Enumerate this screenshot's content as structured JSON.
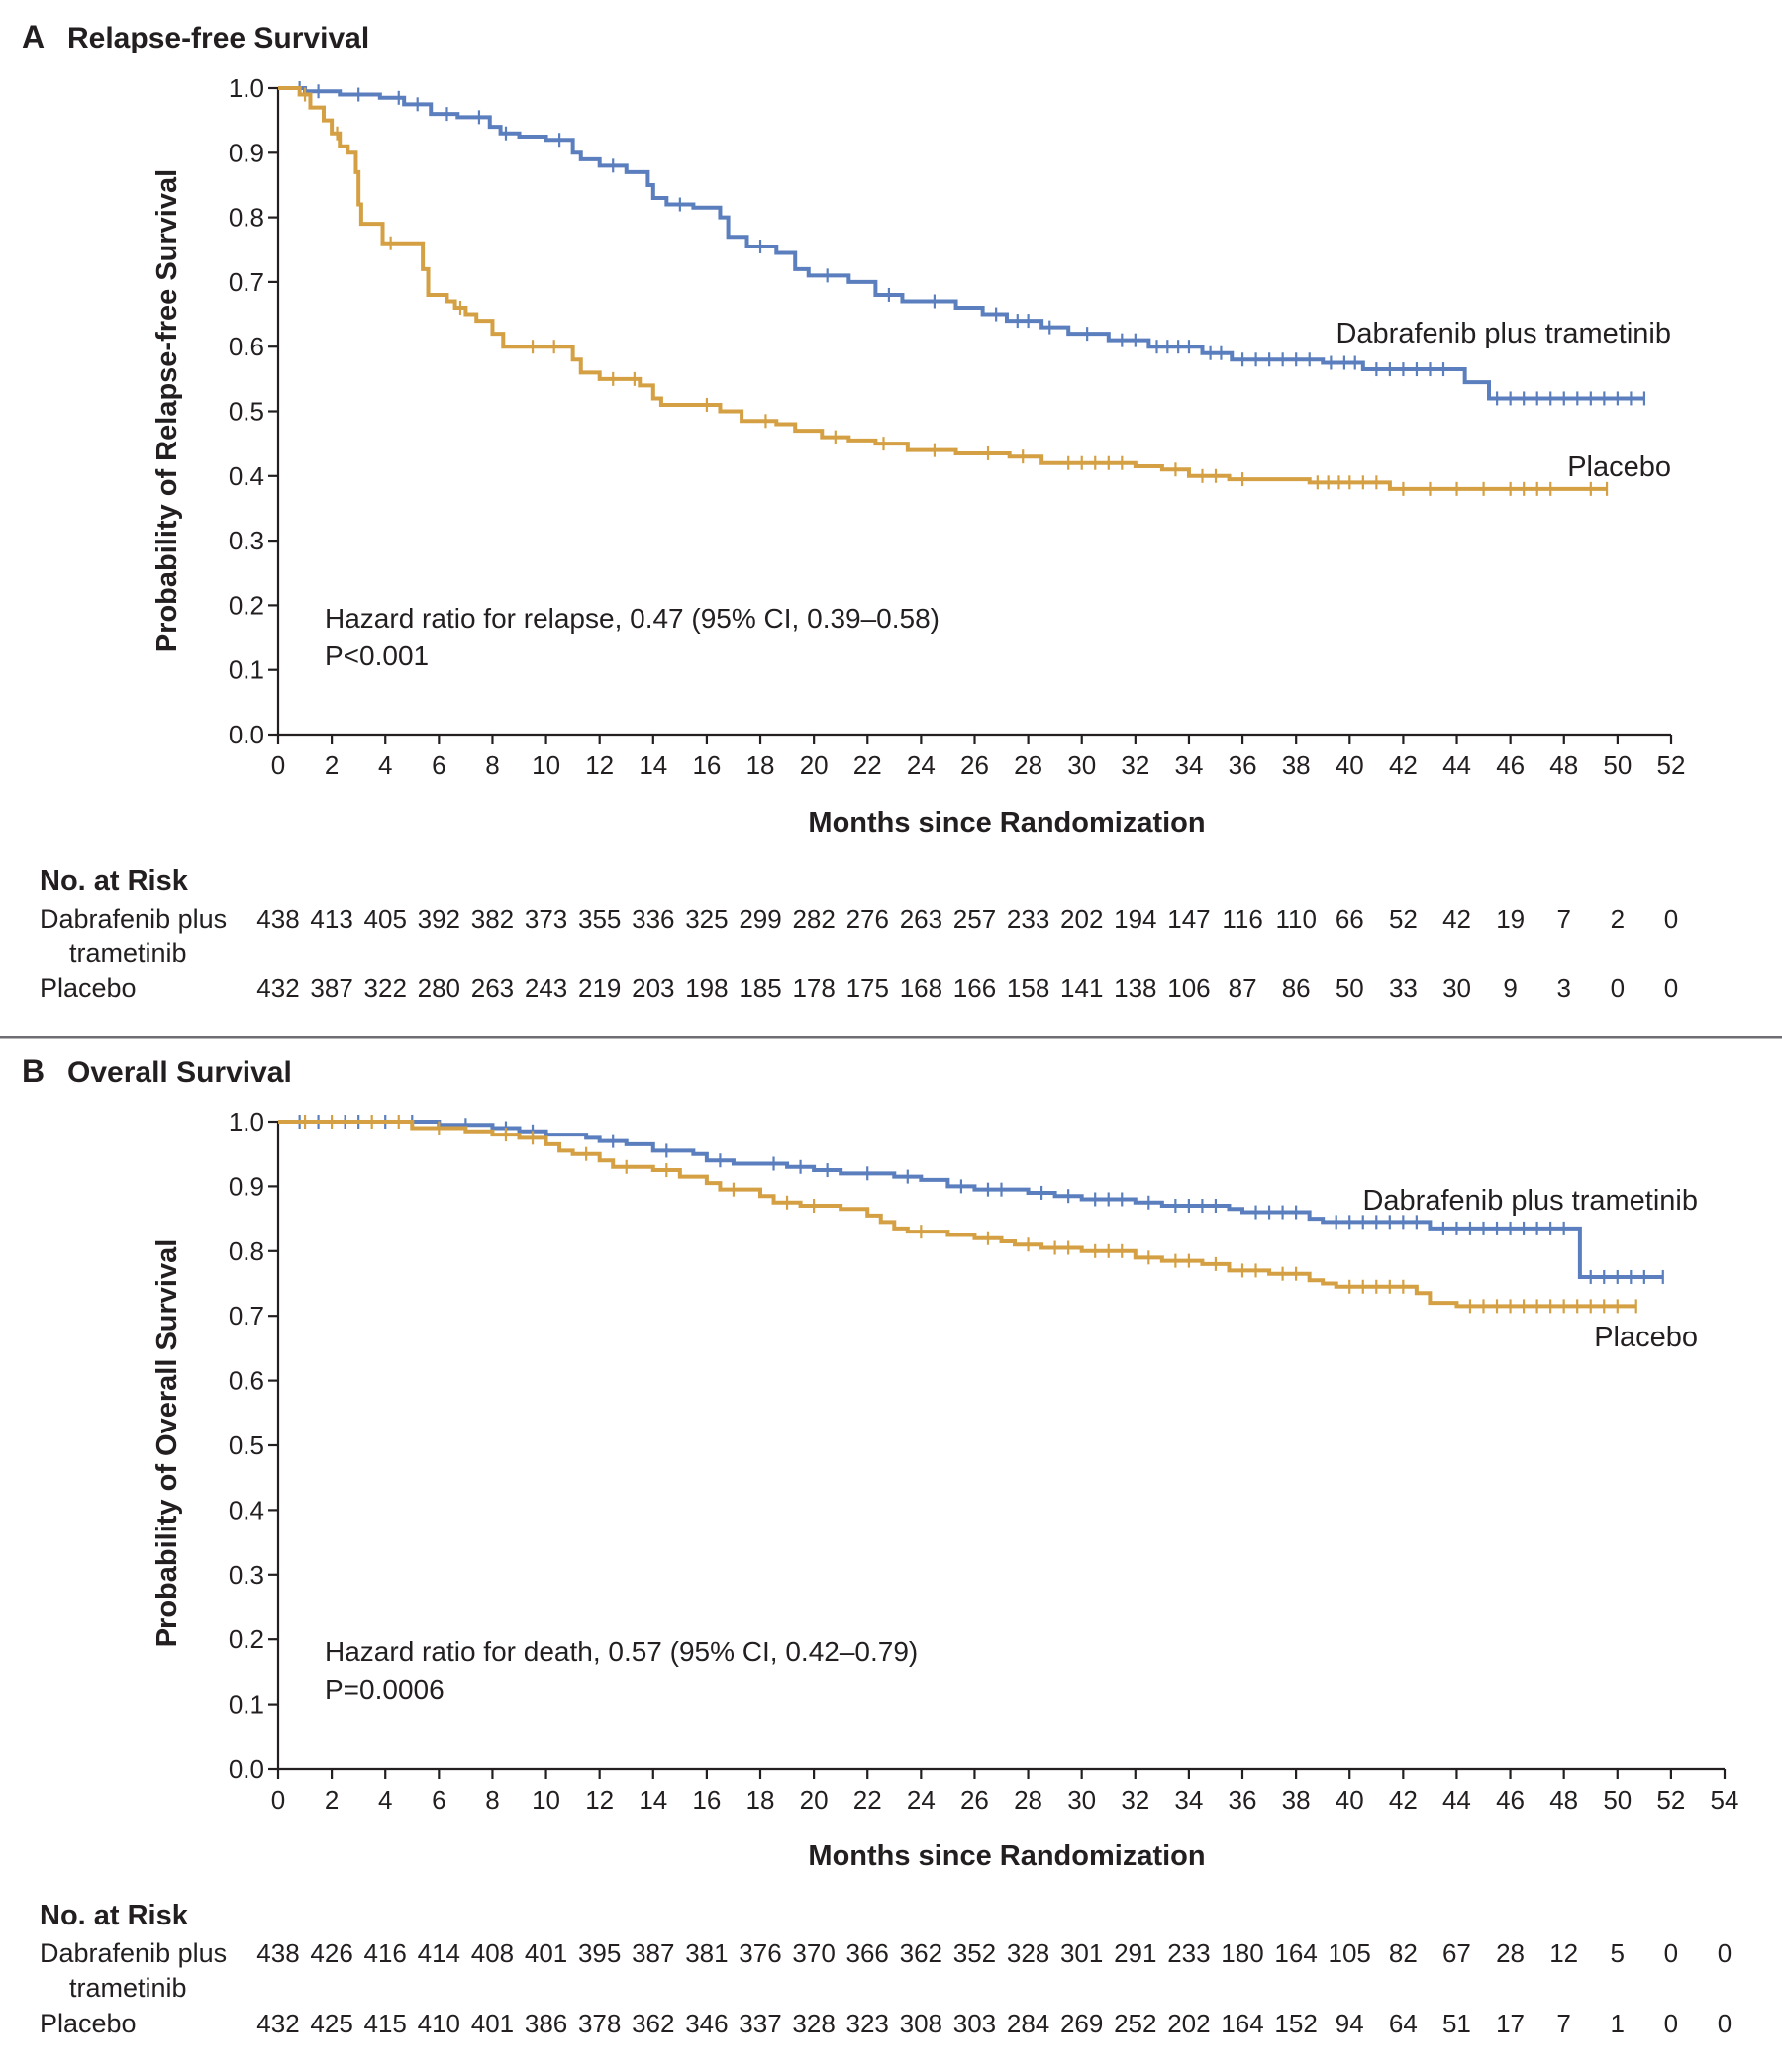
{
  "chart_data": [
    {
      "type": "line",
      "panel": "A",
      "title": "Relapse-free Survival",
      "xlabel": "Months since Randomization",
      "ylabel": "Probability of Relapse-free Survival",
      "xlim": [
        0,
        52
      ],
      "ylim": [
        0.0,
        1.0
      ],
      "x_ticks": [
        0,
        2,
        4,
        6,
        8,
        10,
        12,
        14,
        16,
        18,
        20,
        22,
        24,
        26,
        28,
        30,
        32,
        34,
        36,
        38,
        40,
        42,
        44,
        46,
        48,
        50,
        52
      ],
      "y_ticks": [
        "0.0",
        "0.1",
        "0.2",
        "0.3",
        "0.4",
        "0.5",
        "0.6",
        "0.7",
        "0.8",
        "0.9",
        "1.0"
      ],
      "annotations": [
        "Hazard ratio for relapse, 0.47 (95% CI, 0.39–0.58)",
        "P<0.001"
      ],
      "series": [
        {
          "name": "Dabrafenib plus trametinib",
          "color": "#5b7fbe",
          "steps": [
            [
              0,
              1.0
            ],
            [
              1.0,
              0.995
            ],
            [
              2.3,
              0.99
            ],
            [
              3.8,
              0.985
            ],
            [
              4.7,
              0.975
            ],
            [
              5.7,
              0.96
            ],
            [
              6.7,
              0.955
            ],
            [
              7.9,
              0.94
            ],
            [
              8.3,
              0.93
            ],
            [
              9.0,
              0.925
            ],
            [
              10.0,
              0.92
            ],
            [
              11.0,
              0.9
            ],
            [
              11.3,
              0.89
            ],
            [
              12.0,
              0.88
            ],
            [
              13.0,
              0.87
            ],
            [
              13.8,
              0.85
            ],
            [
              14.0,
              0.83
            ],
            [
              14.5,
              0.82
            ],
            [
              15.5,
              0.815
            ],
            [
              16.5,
              0.8
            ],
            [
              16.8,
              0.77
            ],
            [
              17.5,
              0.755
            ],
            [
              18.6,
              0.745
            ],
            [
              19.3,
              0.72
            ],
            [
              19.8,
              0.71
            ],
            [
              21.3,
              0.7
            ],
            [
              22.3,
              0.68
            ],
            [
              23.3,
              0.67
            ],
            [
              25.3,
              0.66
            ],
            [
              26.3,
              0.65
            ],
            [
              27.2,
              0.64
            ],
            [
              28.5,
              0.63
            ],
            [
              29.5,
              0.62
            ],
            [
              31.0,
              0.61
            ],
            [
              32.5,
              0.6
            ],
            [
              34.5,
              0.59
            ],
            [
              35.6,
              0.58
            ],
            [
              39.0,
              0.575
            ],
            [
              40.5,
              0.565
            ],
            [
              44.3,
              0.545
            ],
            [
              45.2,
              0.52
            ],
            [
              51.0,
              0.52
            ]
          ],
          "censor_marks": [
            0.8,
            1.5,
            3.0,
            4.5,
            5.2,
            6.3,
            7.5,
            8.5,
            10.5,
            12.5,
            15.0,
            18.0,
            20.5,
            22.8,
            24.5,
            26.8,
            27.6,
            28.0,
            28.8,
            30.2,
            31.5,
            32.0,
            32.8,
            33.2,
            33.6,
            34.0,
            34.8,
            35.2,
            36.0,
            36.5,
            37.0,
            37.5,
            38.0,
            38.5,
            39.3,
            39.8,
            40.2,
            41.0,
            41.5,
            42.0,
            42.5,
            43.0,
            43.5,
            45.5,
            46.0,
            46.5,
            47.0,
            47.5,
            48.0,
            48.5,
            49.0,
            49.5,
            50.0,
            50.5,
            51.0
          ]
        },
        {
          "name": "Placebo",
          "color": "#d4a043",
          "steps": [
            [
              0,
              1.0
            ],
            [
              0.8,
              0.99
            ],
            [
              1.2,
              0.97
            ],
            [
              1.7,
              0.95
            ],
            [
              2.0,
              0.93
            ],
            [
              2.3,
              0.91
            ],
            [
              2.6,
              0.9
            ],
            [
              2.9,
              0.87
            ],
            [
              3.0,
              0.82
            ],
            [
              3.1,
              0.79
            ],
            [
              3.9,
              0.76
            ],
            [
              5.4,
              0.72
            ],
            [
              5.6,
              0.68
            ],
            [
              6.3,
              0.67
            ],
            [
              6.6,
              0.66
            ],
            [
              7.0,
              0.65
            ],
            [
              7.4,
              0.64
            ],
            [
              8.0,
              0.62
            ],
            [
              8.4,
              0.6
            ],
            [
              11.0,
              0.58
            ],
            [
              11.3,
              0.56
            ],
            [
              12.0,
              0.55
            ],
            [
              13.5,
              0.54
            ],
            [
              14.0,
              0.52
            ],
            [
              14.3,
              0.51
            ],
            [
              16.5,
              0.5
            ],
            [
              17.3,
              0.485
            ],
            [
              18.6,
              0.48
            ],
            [
              19.3,
              0.47
            ],
            [
              20.3,
              0.46
            ],
            [
              21.3,
              0.455
            ],
            [
              22.3,
              0.45
            ],
            [
              23.5,
              0.44
            ],
            [
              25.3,
              0.435
            ],
            [
              27.3,
              0.43
            ],
            [
              28.5,
              0.42
            ],
            [
              32.0,
              0.415
            ],
            [
              33.0,
              0.41
            ],
            [
              34.0,
              0.4
            ],
            [
              35.5,
              0.395
            ],
            [
              38.5,
              0.39
            ],
            [
              41.5,
              0.38
            ],
            [
              49.6,
              0.38
            ]
          ],
          "censor_marks": [
            1.0,
            2.2,
            4.2,
            6.8,
            9.5,
            10.3,
            12.5,
            13.3,
            16.0,
            18.2,
            20.8,
            22.6,
            24.5,
            26.5,
            27.8,
            29.5,
            30.0,
            30.5,
            31.0,
            31.5,
            33.5,
            34.5,
            35.0,
            36.0,
            38.8,
            39.2,
            39.6,
            40.0,
            40.5,
            41.0,
            42.0,
            43.0,
            44.0,
            45.0,
            46.0,
            46.5,
            47.0,
            47.5,
            49.0,
            49.6
          ]
        }
      ],
      "risk_table": {
        "header": "No. at Risk",
        "rows": [
          {
            "label": "Dabrafenib plus",
            "label2": "trametinib",
            "values": [
              "438",
              "413",
              "405",
              "392",
              "382",
              "373",
              "355",
              "336",
              "325",
              "299",
              "282",
              "276",
              "263",
              "257",
              "233",
              "202",
              "194",
              "147",
              "116",
              "110",
              "66",
              "52",
              "42",
              "19",
              "7",
              "2",
              "0"
            ]
          },
          {
            "label": "Placebo",
            "label2": "",
            "values": [
              "432",
              "387",
              "322",
              "280",
              "263",
              "243",
              "219",
              "203",
              "198",
              "185",
              "178",
              "175",
              "168",
              "166",
              "158",
              "141",
              "138",
              "106",
              "87",
              "86",
              "50",
              "33",
              "30",
              "9",
              "3",
              "0",
              "0"
            ]
          }
        ]
      }
    },
    {
      "type": "line",
      "panel": "B",
      "title": "Overall Survival",
      "xlabel": "Months since Randomization",
      "ylabel": "Probability of Overall Survival",
      "xlim": [
        0,
        54
      ],
      "ylim": [
        0.0,
        1.0
      ],
      "x_ticks": [
        0,
        2,
        4,
        6,
        8,
        10,
        12,
        14,
        16,
        18,
        20,
        22,
        24,
        26,
        28,
        30,
        32,
        34,
        36,
        38,
        40,
        42,
        44,
        46,
        48,
        50,
        52,
        54
      ],
      "y_ticks": [
        "0.0",
        "0.1",
        "0.2",
        "0.3",
        "0.4",
        "0.5",
        "0.6",
        "0.7",
        "0.8",
        "0.9",
        "1.0"
      ],
      "annotations": [
        "Hazard ratio for death, 0.57 (95% CI, 0.42–0.79)",
        "P=0.0006"
      ],
      "series": [
        {
          "name": "Dabrafenib plus trametinib",
          "color": "#5b7fbe",
          "steps": [
            [
              0,
              1.0
            ],
            [
              6.0,
              0.995
            ],
            [
              8.0,
              0.99
            ],
            [
              9.0,
              0.985
            ],
            [
              10.0,
              0.98
            ],
            [
              11.5,
              0.975
            ],
            [
              12.0,
              0.97
            ],
            [
              13.0,
              0.965
            ],
            [
              14.0,
              0.955
            ],
            [
              15.5,
              0.95
            ],
            [
              16.0,
              0.94
            ],
            [
              17.0,
              0.935
            ],
            [
              19.0,
              0.93
            ],
            [
              20.0,
              0.925
            ],
            [
              21.0,
              0.92
            ],
            [
              23.0,
              0.915
            ],
            [
              24.0,
              0.91
            ],
            [
              25.0,
              0.9
            ],
            [
              26.0,
              0.895
            ],
            [
              28.0,
              0.89
            ],
            [
              29.0,
              0.885
            ],
            [
              30.0,
              0.88
            ],
            [
              32.0,
              0.875
            ],
            [
              33.0,
              0.87
            ],
            [
              35.5,
              0.865
            ],
            [
              36.0,
              0.86
            ],
            [
              38.5,
              0.85
            ],
            [
              39.0,
              0.845
            ],
            [
              43.0,
              0.835
            ],
            [
              48.5,
              0.835
            ],
            [
              48.6,
              0.76
            ],
            [
              51.7,
              0.76
            ]
          ],
          "censor_marks": [
            0.8,
            1.5,
            2.5,
            3.0,
            4.0,
            5.0,
            7.0,
            8.5,
            9.5,
            12.5,
            14.5,
            16.5,
            18.5,
            19.5,
            20.5,
            22.0,
            23.5,
            25.5,
            26.5,
            27.0,
            28.5,
            29.5,
            30.5,
            31.0,
            31.5,
            32.5,
            33.5,
            34.0,
            34.5,
            35.0,
            36.5,
            37.0,
            37.5,
            38.0,
            39.5,
            40.0,
            40.5,
            41.0,
            41.5,
            42.0,
            42.5,
            43.5,
            44.0,
            44.5,
            45.0,
            45.5,
            46.0,
            46.5,
            47.0,
            47.5,
            48.0,
            49.0,
            49.5,
            50.0,
            50.5,
            51.0,
            51.7
          ]
        },
        {
          "name": "Placebo",
          "color": "#d4a043",
          "steps": [
            [
              0,
              1.0
            ],
            [
              5.0,
              0.99
            ],
            [
              7.0,
              0.985
            ],
            [
              8.0,
              0.98
            ],
            [
              9.0,
              0.975
            ],
            [
              10.0,
              0.965
            ],
            [
              10.5,
              0.955
            ],
            [
              11.0,
              0.95
            ],
            [
              12.0,
              0.94
            ],
            [
              12.5,
              0.93
            ],
            [
              14.0,
              0.925
            ],
            [
              15.0,
              0.915
            ],
            [
              16.0,
              0.905
            ],
            [
              16.5,
              0.895
            ],
            [
              18.0,
              0.885
            ],
            [
              18.5,
              0.875
            ],
            [
              19.5,
              0.87
            ],
            [
              21.0,
              0.865
            ],
            [
              22.0,
              0.855
            ],
            [
              22.5,
              0.845
            ],
            [
              23.0,
              0.835
            ],
            [
              23.5,
              0.83
            ],
            [
              25.0,
              0.825
            ],
            [
              26.0,
              0.82
            ],
            [
              27.0,
              0.815
            ],
            [
              27.5,
              0.81
            ],
            [
              28.5,
              0.805
            ],
            [
              30.0,
              0.8
            ],
            [
              32.0,
              0.79
            ],
            [
              33.0,
              0.785
            ],
            [
              34.5,
              0.78
            ],
            [
              35.5,
              0.77
            ],
            [
              37.0,
              0.765
            ],
            [
              38.5,
              0.755
            ],
            [
              39.0,
              0.75
            ],
            [
              39.5,
              0.745
            ],
            [
              42.5,
              0.735
            ],
            [
              43.0,
              0.72
            ],
            [
              44.0,
              0.715
            ],
            [
              50.7,
              0.715
            ]
          ],
          "censor_marks": [
            1.0,
            2.0,
            3.5,
            4.5,
            6.0,
            8.5,
            9.5,
            11.5,
            13.0,
            14.5,
            17.0,
            19.0,
            20.0,
            24.0,
            26.5,
            28.0,
            29.0,
            29.5,
            30.5,
            31.0,
            31.5,
            32.5,
            33.5,
            34.0,
            35.0,
            36.0,
            36.5,
            37.5,
            38.0,
            40.0,
            40.5,
            41.0,
            41.5,
            42.0,
            44.5,
            45.0,
            45.5,
            46.0,
            46.5,
            47.0,
            47.5,
            48.0,
            48.5,
            49.0,
            49.5,
            50.0,
            50.7
          ]
        }
      ],
      "risk_table": {
        "header": "No. at Risk",
        "rows": [
          {
            "label": "Dabrafenib plus",
            "label2": "trametinib",
            "values": [
              "438",
              "426",
              "416",
              "414",
              "408",
              "401",
              "395",
              "387",
              "381",
              "376",
              "370",
              "366",
              "362",
              "352",
              "328",
              "301",
              "291",
              "233",
              "180",
              "164",
              "105",
              "82",
              "67",
              "28",
              "12",
              "5",
              "0",
              "0"
            ]
          },
          {
            "label": "Placebo",
            "label2": "",
            "values": [
              "432",
              "425",
              "415",
              "410",
              "401",
              "386",
              "378",
              "362",
              "346",
              "337",
              "328",
              "323",
              "308",
              "303",
              "284",
              "269",
              "252",
              "202",
              "164",
              "152",
              "94",
              "64",
              "51",
              "17",
              "7",
              "1",
              "0",
              "0"
            ]
          }
        ]
      }
    }
  ]
}
